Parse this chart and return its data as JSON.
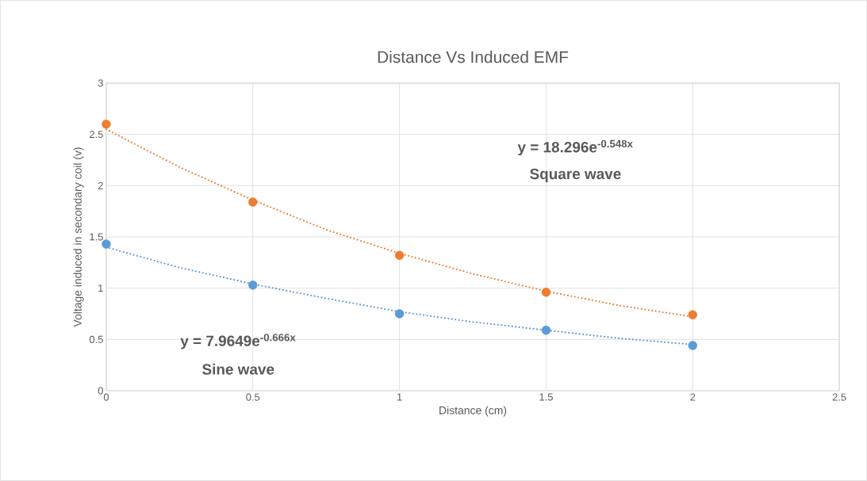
{
  "chart_data": {
    "type": "scatter",
    "title": "Distance Vs Induced EMF",
    "xlabel": "Distance (cm)",
    "ylabel": "Voltage induced in secondary coil (v)",
    "series": [
      {
        "color": "#ed7d31",
        "marker": "circle",
        "x": [
          0,
          0.5,
          1,
          1.5,
          2
        ],
        "values": [
          2.6,
          1.84,
          1.32,
          0.96,
          0.74
        ]
      },
      {
        "color": "#5b9bd5",
        "marker": "circle",
        "x": [
          0,
          0.5,
          1,
          1.5,
          2
        ],
        "values": [
          1.43,
          1.03,
          0.75,
          0.59,
          0.44
        ]
      },
      {
        "type": "line",
        "color": "#ed7d31",
        "line_style": "dotted",
        "marker": "none",
        "x": [
          0,
          0.25,
          0.5,
          0.75,
          1,
          1.25,
          1.5,
          1.75,
          2
        ],
        "values": [
          2.55,
          2.18,
          1.86,
          1.57,
          1.34,
          1.14,
          0.97,
          0.83,
          0.72
        ]
      },
      {
        "type": "line",
        "color": "#5b9bd5",
        "line_style": "dotted",
        "marker": "none",
        "x": [
          0,
          0.25,
          0.5,
          0.75,
          1,
          1.25,
          1.5,
          1.75,
          2
        ],
        "values": [
          1.4,
          1.2,
          1.04,
          0.9,
          0.77,
          0.67,
          0.59,
          0.51,
          0.45
        ]
      }
    ],
    "annotations": [
      "y = 18.296e$^{-0.548x}$",
      "Square wave",
      "y = 7.9649e$^{-0.666x}$",
      "Sine wave"
    ],
    "xlim": [
      0,
      2.5
    ],
    "xticks": [
      0,
      0.5,
      1,
      1.5,
      2,
      2.5
    ],
    "ylim": [
      0,
      3
    ],
    "yticks": [
      0,
      0.5,
      1,
      1.5,
      2,
      2.5,
      3
    ],
    "grid": true
  }
}
